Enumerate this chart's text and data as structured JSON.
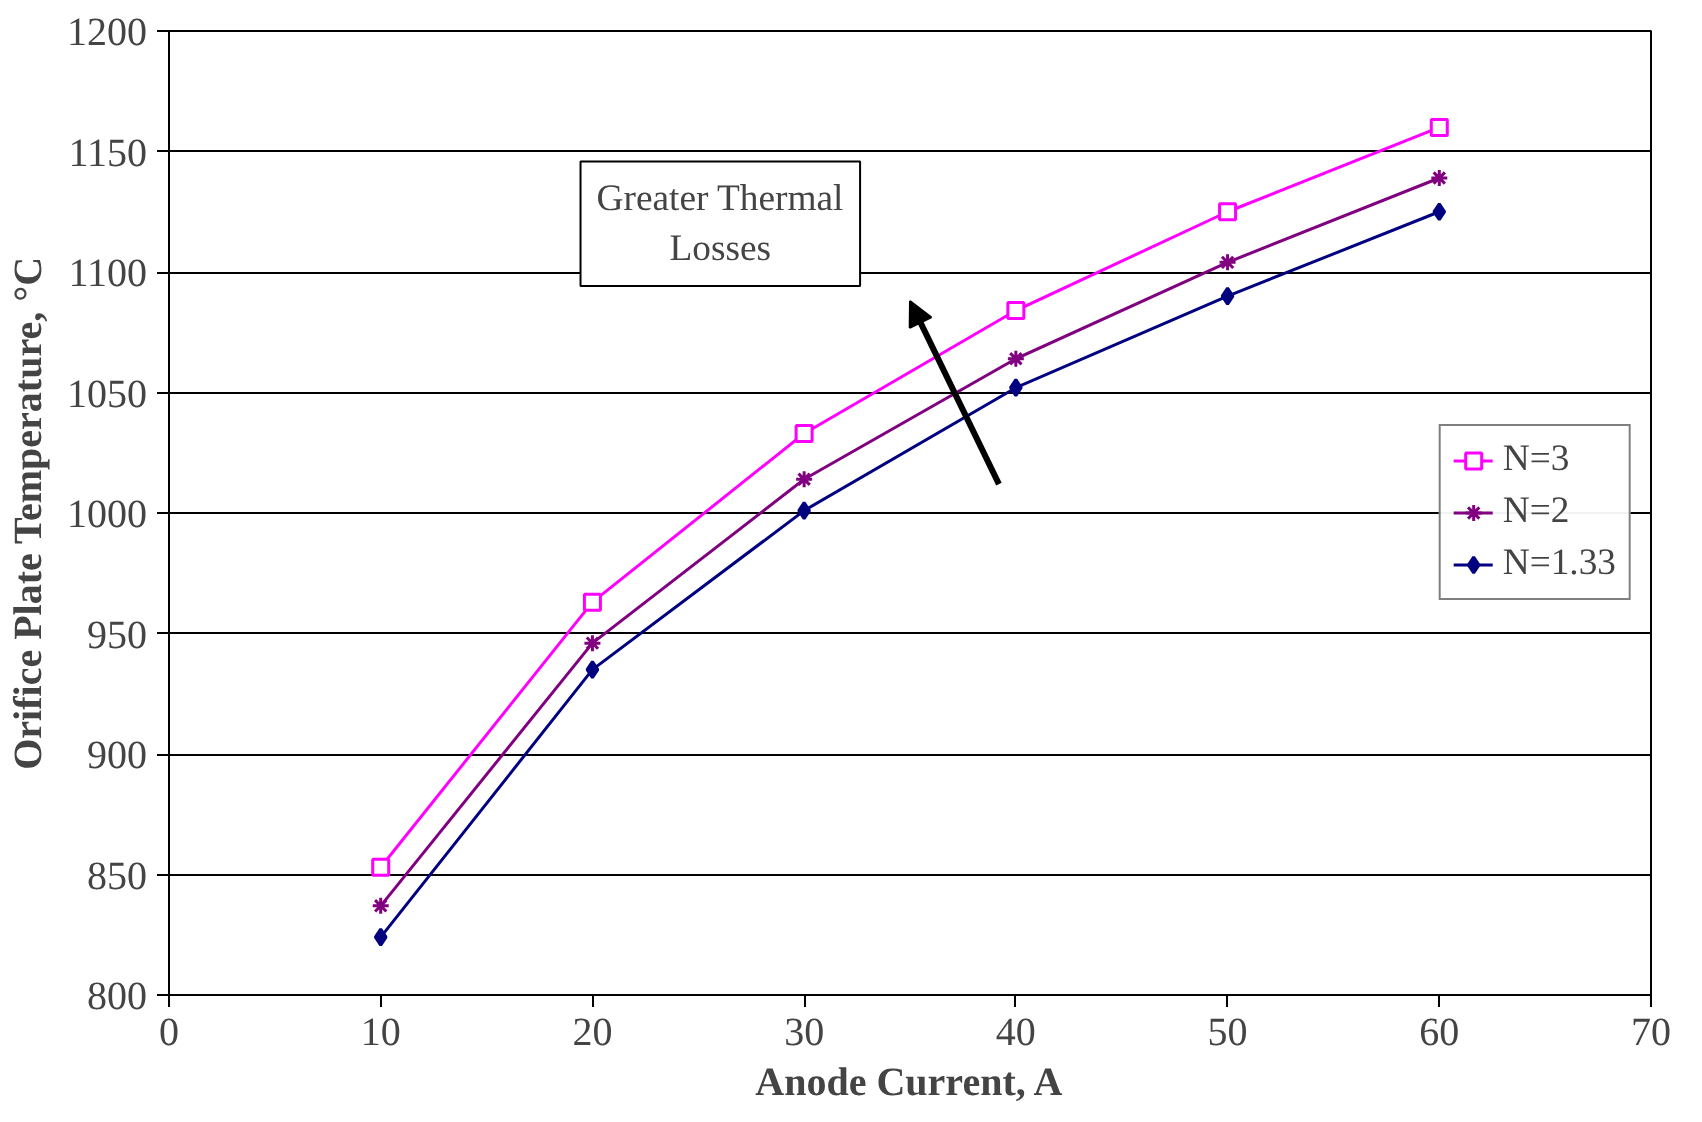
{
  "chart_data": {
    "type": "line",
    "xlabel": "Anode Current, A",
    "ylabel": "Orifice Plate Temperature, °C",
    "x": [
      10,
      20,
      30,
      40,
      50,
      60
    ],
    "series": [
      {
        "name": "N=3",
        "color": "#ff00ff",
        "marker": "square",
        "values": [
          853,
          963,
          1033,
          1084,
          1125,
          1160
        ]
      },
      {
        "name": "N=2",
        "color": "#800080",
        "marker": "cross",
        "values": [
          837,
          946,
          1014,
          1064,
          1104,
          1139
        ]
      },
      {
        "name": "N=1.33",
        "color": "#000080",
        "marker": "diamond",
        "values": [
          824,
          935,
          1001,
          1052,
          1090,
          1125
        ]
      }
    ],
    "xlim": [
      0,
      70
    ],
    "xticks": [
      0,
      10,
      20,
      30,
      40,
      50,
      60,
      70
    ],
    "ylim": [
      800,
      1200
    ],
    "yticks": [
      800,
      850,
      900,
      950,
      1000,
      1050,
      1100,
      1150,
      1200
    ],
    "grid": "y",
    "legend": "right",
    "annotations": [
      "Greater Thermal\nLosses"
    ]
  }
}
